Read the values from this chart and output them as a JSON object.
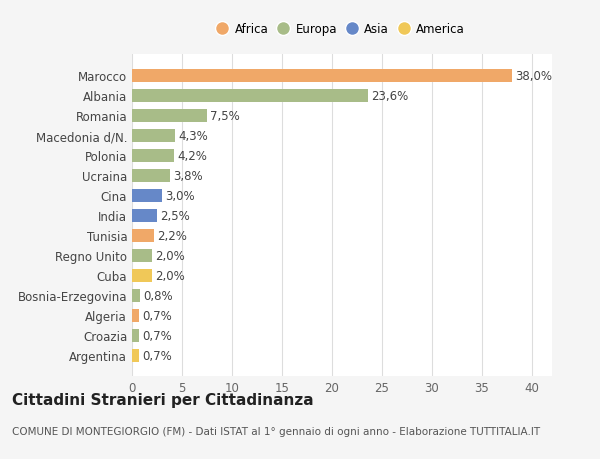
{
  "categories": [
    "Marocco",
    "Albania",
    "Romania",
    "Macedonia d/N.",
    "Polonia",
    "Ucraina",
    "Cina",
    "India",
    "Tunisia",
    "Regno Unito",
    "Cuba",
    "Bosnia-Erzegovina",
    "Algeria",
    "Croazia",
    "Argentina"
  ],
  "values": [
    38.0,
    23.6,
    7.5,
    4.3,
    4.2,
    3.8,
    3.0,
    2.5,
    2.2,
    2.0,
    2.0,
    0.8,
    0.7,
    0.7,
    0.7
  ],
  "labels": [
    "38,0%",
    "23,6%",
    "7,5%",
    "4,3%",
    "4,2%",
    "3,8%",
    "3,0%",
    "2,5%",
    "2,2%",
    "2,0%",
    "2,0%",
    "0,8%",
    "0,7%",
    "0,7%",
    "0,7%"
  ],
  "continents": [
    "Africa",
    "Europa",
    "Europa",
    "Europa",
    "Europa",
    "Europa",
    "Asia",
    "Asia",
    "Africa",
    "Europa",
    "America",
    "Europa",
    "Africa",
    "Europa",
    "America"
  ],
  "colors": {
    "Africa": "#F0A868",
    "Europa": "#A8BC88",
    "Asia": "#6688C8",
    "America": "#F0C858"
  },
  "legend_order": [
    "Africa",
    "Europa",
    "Asia",
    "America"
  ],
  "xlim": [
    0,
    42
  ],
  "xticks": [
    0,
    5,
    10,
    15,
    20,
    25,
    30,
    35,
    40
  ],
  "title": "Cittadini Stranieri per Cittadinanza",
  "subtitle": "COMUNE DI MONTEGIORGIO (FM) - Dati ISTAT al 1° gennaio di ogni anno - Elaborazione TUTTITALIA.IT",
  "bg_color": "#f5f5f5",
  "plot_bg_color": "#ffffff",
  "grid_color": "#dddddd",
  "label_fontsize": 8.5,
  "tick_fontsize": 8.5,
  "title_fontsize": 11,
  "subtitle_fontsize": 7.5
}
